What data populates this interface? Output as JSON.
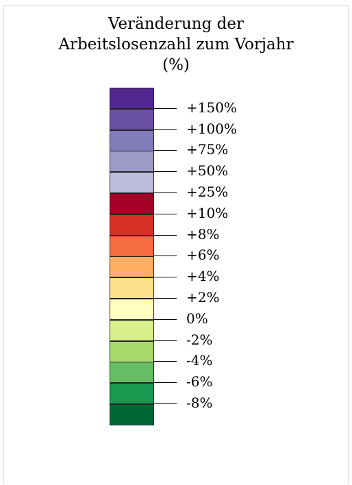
{
  "legend": {
    "title_lines": [
      "Veränderung der",
      "Arbeitslosenzahl zum Vorjahr",
      "(%)"
    ],
    "colors": [
      "#54278f",
      "#6a51a3",
      "#807dba",
      "#9e9ac8",
      "#bcbddc",
      "#a50026",
      "#d73027",
      "#f46d43",
      "#fdae61",
      "#fee08b",
      "#ffffbf",
      "#d9ef8b",
      "#a6d96a",
      "#66bd63",
      "#1a9850",
      "#006837"
    ],
    "labels": [
      "+150%",
      "+100%",
      "+75%",
      "+50%",
      "+25%",
      "+10%",
      "+8%",
      "+6%",
      "+4%",
      "+2%",
      "0%",
      "-2%",
      "-4%",
      "-6%",
      "-8%"
    ]
  }
}
